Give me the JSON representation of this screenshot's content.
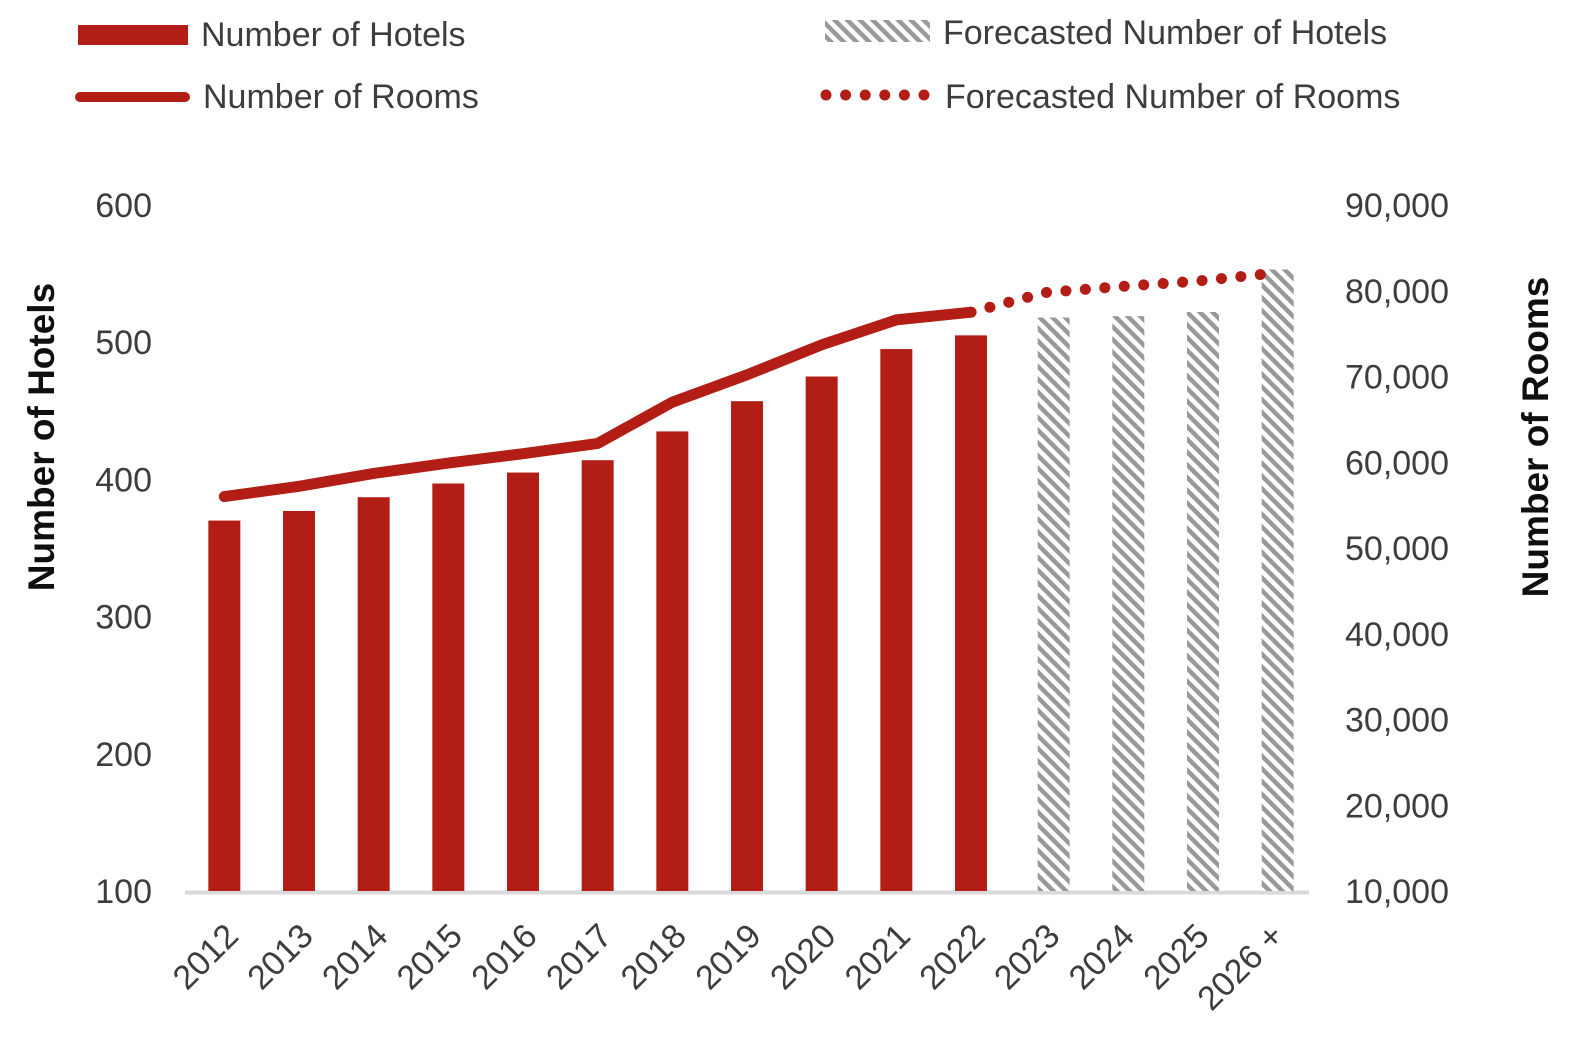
{
  "legend": {
    "items": [
      {
        "label": "Number of Hotels",
        "swatch": "bar-solid"
      },
      {
        "label": "Number of Rooms",
        "swatch": "line-solid"
      },
      {
        "label": "Forecasted Number of Hotels",
        "swatch": "bar-hatched"
      },
      {
        "label": "Forecasted Number of Rooms",
        "swatch": "line-dotted"
      }
    ]
  },
  "axes": {
    "left": {
      "title": "Number of Hotels",
      "tick_labels": [
        "600",
        "500",
        "400",
        "300",
        "200",
        "100"
      ]
    },
    "right": {
      "title": "Number of Rooms",
      "tick_labels": [
        "90,000",
        "80,000",
        "70,000",
        "60,000",
        "50,000",
        "40,000",
        "30,000",
        "20,000",
        "10,000"
      ]
    },
    "x": {
      "tick_labels": [
        "2012",
        "2013",
        "2014",
        "2015",
        "2016",
        "2017",
        "2018",
        "2019",
        "2020",
        "2021",
        "2022",
        "2023",
        "2024",
        "2025",
        "2026 +"
      ]
    }
  },
  "chart_data": {
    "type": "combo-bar-line",
    "categories": [
      "2012",
      "2013",
      "2014",
      "2015",
      "2016",
      "2017",
      "2018",
      "2019",
      "2020",
      "2021",
      "2022",
      "2023",
      "2024",
      "2025",
      "2026 +"
    ],
    "series": [
      {
        "name": "Number of Hotels",
        "type": "bar",
        "style": "solid",
        "axis": "left",
        "values": [
          370,
          377,
          387,
          397,
          405,
          414,
          435,
          457,
          475,
          495,
          505,
          null,
          null,
          null,
          null
        ]
      },
      {
        "name": "Forecasted Number of Hotels",
        "type": "bar",
        "style": "hatched",
        "axis": "left",
        "values": [
          null,
          null,
          null,
          null,
          null,
          null,
          null,
          null,
          null,
          null,
          null,
          518,
          519,
          522,
          553
        ]
      },
      {
        "name": "Number of Rooms",
        "type": "line",
        "style": "solid",
        "axis": "right",
        "values": [
          56000,
          57200,
          58700,
          59900,
          61000,
          62200,
          67000,
          70200,
          73700,
          76600,
          77500,
          null,
          null,
          null,
          null
        ]
      },
      {
        "name": "Forecasted Number of Rooms",
        "type": "line",
        "style": "dotted",
        "axis": "right",
        "values": [
          null,
          null,
          null,
          null,
          null,
          null,
          null,
          null,
          null,
          null,
          77500,
          79800,
          80500,
          81100,
          82000
        ]
      }
    ],
    "left_axis": {
      "label": "Number of Hotels",
      "min": 100,
      "max": 600,
      "step": 100
    },
    "right_axis": {
      "label": "Number of Rooms",
      "min": 10000,
      "max": 90000,
      "step": 10000
    },
    "gridlines": false,
    "legend_position": "top"
  },
  "colors": {
    "accent_red": "#B21E15",
    "hatch_gray": "#999999",
    "axis_line": "#D9D9D9",
    "tick_text": "#3d3d3d",
    "title_text": "#0f0f0f"
  }
}
